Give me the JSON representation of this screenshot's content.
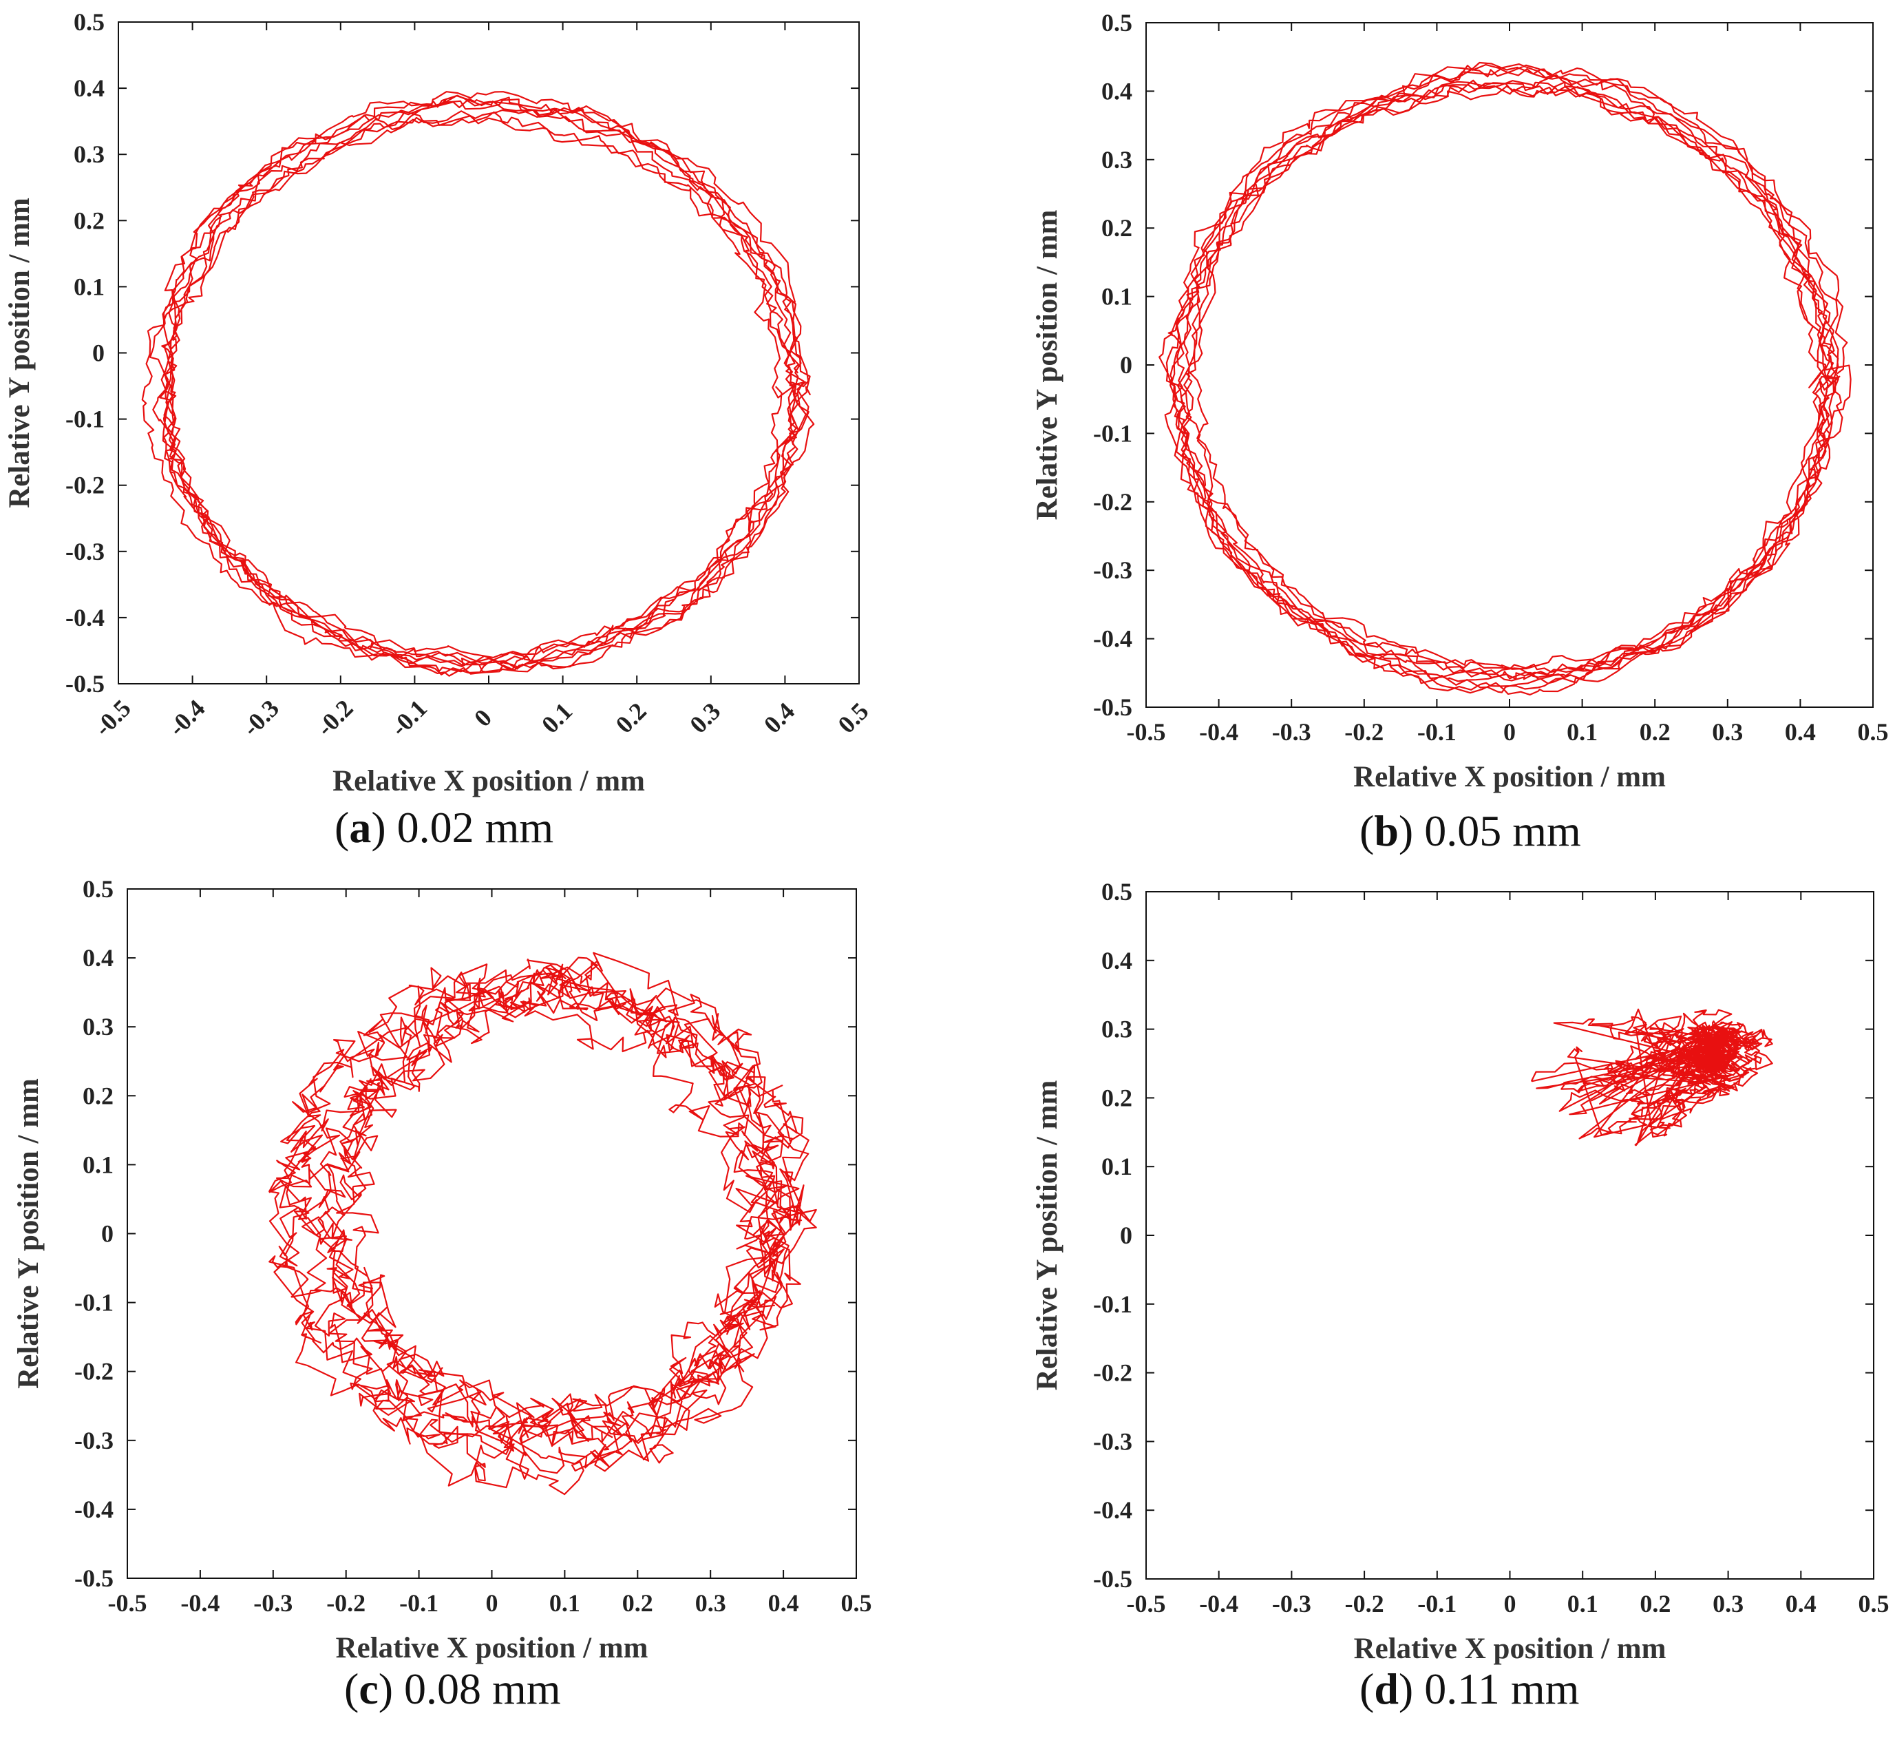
{
  "chart_data": [
    {
      "type": "line",
      "panel": "a",
      "caption_letter": "a",
      "caption_text": "0.02 mm",
      "xlabel": "Relative X position / mm",
      "ylabel": "Relative Y position / mm",
      "xlim": [
        -0.5,
        0.5
      ],
      "ylim": [
        -0.5,
        0.5
      ],
      "xticks": [
        -0.5,
        -0.4,
        -0.3,
        -0.2,
        -0.1,
        0,
        0.1,
        0.2,
        0.3,
        0.4,
        0.5
      ],
      "xtick_labels": [
        "-0.5",
        "-0.4",
        "-0.3",
        "-0.2",
        "-0.1",
        "0",
        "0.1",
        "0.2",
        "0.3",
        "0.4",
        "0.5"
      ],
      "yticks": [
        -0.5,
        -0.4,
        -0.3,
        -0.2,
        -0.1,
        0,
        0.1,
        0.2,
        0.3,
        0.4,
        0.5
      ],
      "ytick_labels": [
        "-0.5",
        "-0.4",
        "-0.3",
        "-0.2",
        "-0.1",
        "0",
        "0.1",
        "0.2",
        "0.3",
        "0.4",
        "0.5"
      ],
      "series": [
        {
          "name": "trajectory",
          "color": "#e81010",
          "description": "noisy ellipse traced repeatedly",
          "center": [
            -0.015,
            -0.05
          ],
          "radius_x": 0.425,
          "radius_y": 0.42,
          "loops": 8,
          "noise": 0.012
        }
      ]
    },
    {
      "type": "line",
      "panel": "b",
      "caption_letter": "b",
      "caption_text": "0.05 mm",
      "xlabel": "Relative X position / mm",
      "ylabel": "Relative Y position / mm",
      "xlim": [
        -0.5,
        0.5
      ],
      "ylim": [
        -0.5,
        0.5
      ],
      "xticks": [
        -0.5,
        -0.4,
        -0.3,
        -0.2,
        -0.1,
        0,
        0.1,
        0.2,
        0.3,
        0.4,
        0.5
      ],
      "xtick_labels": [
        "-0.5",
        "-0.4",
        "-0.3",
        "-0.2",
        "-0.1",
        "0",
        "0.1",
        "0.2",
        "0.3",
        "0.4",
        "0.5"
      ],
      "yticks": [
        -0.5,
        -0.4,
        -0.3,
        -0.2,
        -0.1,
        0,
        0.1,
        0.2,
        0.3,
        0.4,
        0.5
      ],
      "ytick_labels": [
        "-0.5",
        "-0.4",
        "-0.3",
        "-0.2",
        "-0.1",
        "0",
        "0.1",
        "0.2",
        "0.3",
        "0.4",
        "0.5"
      ],
      "series": [
        {
          "name": "trajectory",
          "color": "#e81010",
          "description": "noisy circle traced repeatedly",
          "center": [
            -0.005,
            -0.02
          ],
          "radius_x": 0.445,
          "radius_y": 0.435,
          "loops": 9,
          "noise": 0.012
        }
      ]
    },
    {
      "type": "line",
      "panel": "c",
      "caption_letter": "c",
      "caption_text": "0.08 mm",
      "xlabel": "Relative X position / mm",
      "ylabel": "Relative Y position / mm",
      "xlim": [
        -0.5,
        0.5
      ],
      "ylim": [
        -0.5,
        0.5
      ],
      "xticks": [
        -0.5,
        -0.4,
        -0.3,
        -0.2,
        -0.1,
        0,
        0.1,
        0.2,
        0.3,
        0.4,
        0.5
      ],
      "xtick_labels": [
        "-0.5",
        "-0.4",
        "-0.3",
        "-0.2",
        "-0.1",
        "0",
        "0.1",
        "0.2",
        "0.3",
        "0.4",
        "0.5"
      ],
      "yticks": [
        -0.5,
        -0.4,
        -0.3,
        -0.2,
        -0.1,
        0,
        0.1,
        0.2,
        0.3,
        0.4,
        0.5
      ],
      "ytick_labels": [
        "-0.5",
        "-0.4",
        "-0.3",
        "-0.2",
        "-0.1",
        "0",
        "0.1",
        "0.2",
        "0.3",
        "0.4",
        "0.5"
      ],
      "series": [
        {
          "name": "trajectory",
          "color": "#e81010",
          "description": "irregular circle traced repeatedly with wider scatter",
          "center": [
            0.085,
            0.03
          ],
          "radius_x": 0.315,
          "radius_y": 0.33,
          "loops": 9,
          "noise": 0.03
        }
      ]
    },
    {
      "type": "line",
      "panel": "d",
      "caption_letter": "d",
      "caption_text": "0.11 mm",
      "xlabel": "Relative X position / mm",
      "ylabel": "Relative Y position / mm",
      "xlim": [
        -0.5,
        0.5
      ],
      "ylim": [
        -0.5,
        0.5
      ],
      "xticks": [
        -0.5,
        -0.4,
        -0.3,
        -0.2,
        -0.1,
        0,
        0.1,
        0.2,
        0.3,
        0.4,
        0.5
      ],
      "xtick_labels": [
        "-0.5",
        "-0.4",
        "-0.3",
        "-0.2",
        "-0.1",
        "0",
        "0.1",
        "0.2",
        "0.3",
        "0.4",
        "0.5"
      ],
      "yticks": [
        -0.5,
        -0.4,
        -0.3,
        -0.2,
        -0.1,
        0,
        0.1,
        0.2,
        0.3,
        0.4,
        0.5
      ],
      "ytick_labels": [
        "-0.5",
        "-0.4",
        "-0.3",
        "-0.2",
        "-0.1",
        "0",
        "0.1",
        "0.2",
        "0.3",
        "0.4",
        "0.5"
      ],
      "series": [
        {
          "name": "trajectory",
          "color": "#e81010",
          "description": "tangled cluster confined to a small region",
          "cluster_x_range": [
            0.03,
            0.38
          ],
          "cluster_y_range": [
            0.13,
            0.35
          ],
          "cluster_center": [
            0.24,
            0.26
          ],
          "noise": 0.02
        }
      ]
    }
  ]
}
